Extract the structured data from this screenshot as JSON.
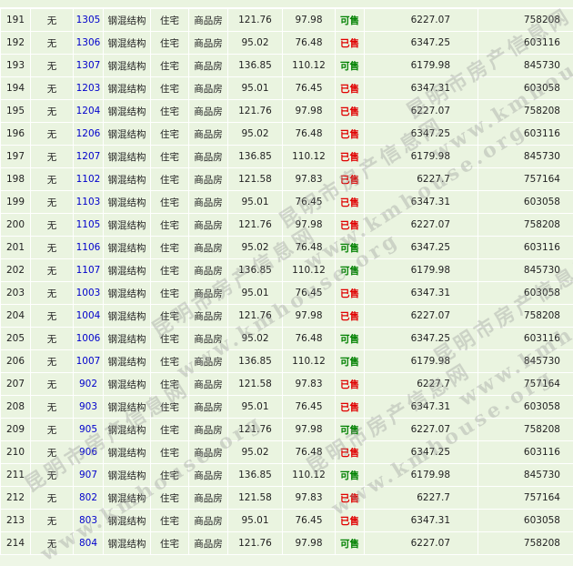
{
  "table": {
    "rows": [
      [
        "191",
        "无",
        "1305",
        "钢混结构",
        "住宅",
        "商品房",
        "121.76",
        "97.98",
        "可售",
        "6227.07",
        "758208"
      ],
      [
        "192",
        "无",
        "1306",
        "钢混结构",
        "住宅",
        "商品房",
        "95.02",
        "76.48",
        "已售",
        "6347.25",
        "603116"
      ],
      [
        "193",
        "无",
        "1307",
        "钢混结构",
        "住宅",
        "商品房",
        "136.85",
        "110.12",
        "可售",
        "6179.98",
        "845730"
      ],
      [
        "194",
        "无",
        "1203",
        "钢混结构",
        "住宅",
        "商品房",
        "95.01",
        "76.45",
        "已售",
        "6347.31",
        "603058"
      ],
      [
        "195",
        "无",
        "1204",
        "钢混结构",
        "住宅",
        "商品房",
        "121.76",
        "97.98",
        "已售",
        "6227.07",
        "758208"
      ],
      [
        "196",
        "无",
        "1206",
        "钢混结构",
        "住宅",
        "商品房",
        "95.02",
        "76.48",
        "已售",
        "6347.25",
        "603116"
      ],
      [
        "197",
        "无",
        "1207",
        "钢混结构",
        "住宅",
        "商品房",
        "136.85",
        "110.12",
        "已售",
        "6179.98",
        "845730"
      ],
      [
        "198",
        "无",
        "1102",
        "钢混结构",
        "住宅",
        "商品房",
        "121.58",
        "97.83",
        "已售",
        "6227.7",
        "757164"
      ],
      [
        "199",
        "无",
        "1103",
        "钢混结构",
        "住宅",
        "商品房",
        "95.01",
        "76.45",
        "已售",
        "6347.31",
        "603058"
      ],
      [
        "200",
        "无",
        "1105",
        "钢混结构",
        "住宅",
        "商品房",
        "121.76",
        "97.98",
        "已售",
        "6227.07",
        "758208"
      ],
      [
        "201",
        "无",
        "1106",
        "钢混结构",
        "住宅",
        "商品房",
        "95.02",
        "76.48",
        "可售",
        "6347.25",
        "603116"
      ],
      [
        "202",
        "无",
        "1107",
        "钢混结构",
        "住宅",
        "商品房",
        "136.85",
        "110.12",
        "可售",
        "6179.98",
        "845730"
      ],
      [
        "203",
        "无",
        "1003",
        "钢混结构",
        "住宅",
        "商品房",
        "95.01",
        "76.45",
        "已售",
        "6347.31",
        "603058"
      ],
      [
        "204",
        "无",
        "1004",
        "钢混结构",
        "住宅",
        "商品房",
        "121.76",
        "97.98",
        "已售",
        "6227.07",
        "758208"
      ],
      [
        "205",
        "无",
        "1006",
        "钢混结构",
        "住宅",
        "商品房",
        "95.02",
        "76.48",
        "可售",
        "6347.25",
        "603116"
      ],
      [
        "206",
        "无",
        "1007",
        "钢混结构",
        "住宅",
        "商品房",
        "136.85",
        "110.12",
        "可售",
        "6179.98",
        "845730"
      ],
      [
        "207",
        "无",
        "902",
        "钢混结构",
        "住宅",
        "商品房",
        "121.58",
        "97.83",
        "已售",
        "6227.7",
        "757164"
      ],
      [
        "208",
        "无",
        "903",
        "钢混结构",
        "住宅",
        "商品房",
        "95.01",
        "76.45",
        "已售",
        "6347.31",
        "603058"
      ],
      [
        "209",
        "无",
        "905",
        "钢混结构",
        "住宅",
        "商品房",
        "121.76",
        "97.98",
        "可售",
        "6227.07",
        "758208"
      ],
      [
        "210",
        "无",
        "906",
        "钢混结构",
        "住宅",
        "商品房",
        "95.02",
        "76.48",
        "已售",
        "6347.25",
        "603116"
      ],
      [
        "211",
        "无",
        "907",
        "钢混结构",
        "住宅",
        "商品房",
        "136.85",
        "110.12",
        "可售",
        "6179.98",
        "845730"
      ],
      [
        "212",
        "无",
        "802",
        "钢混结构",
        "住宅",
        "商品房",
        "121.58",
        "97.83",
        "已售",
        "6227.7",
        "757164"
      ],
      [
        "213",
        "无",
        "803",
        "钢混结构",
        "住宅",
        "商品房",
        "95.01",
        "76.45",
        "已售",
        "6347.31",
        "603058"
      ],
      [
        "214",
        "无",
        "804",
        "钢混结构",
        "住宅",
        "商品房",
        "121.76",
        "97.98",
        "可售",
        "6227.07",
        "758208"
      ]
    ],
    "status_colors": [
      "#008000",
      "#e00000",
      "#008000",
      "#e00000",
      "#e00000",
      "#e00000",
      "#e00000",
      "#e00000",
      "#e00000",
      "#e00000",
      "#008000",
      "#008000",
      "#e00000",
      "#e00000",
      "#008000",
      "#008000",
      "#e00000",
      "#e00000",
      "#008000",
      "#e00000",
      "#008000",
      "#e00000",
      "#e00000",
      "#008000"
    ]
  },
  "watermark": [
    "昆明市房产信息网",
    "www.kmhouse.org"
  ]
}
